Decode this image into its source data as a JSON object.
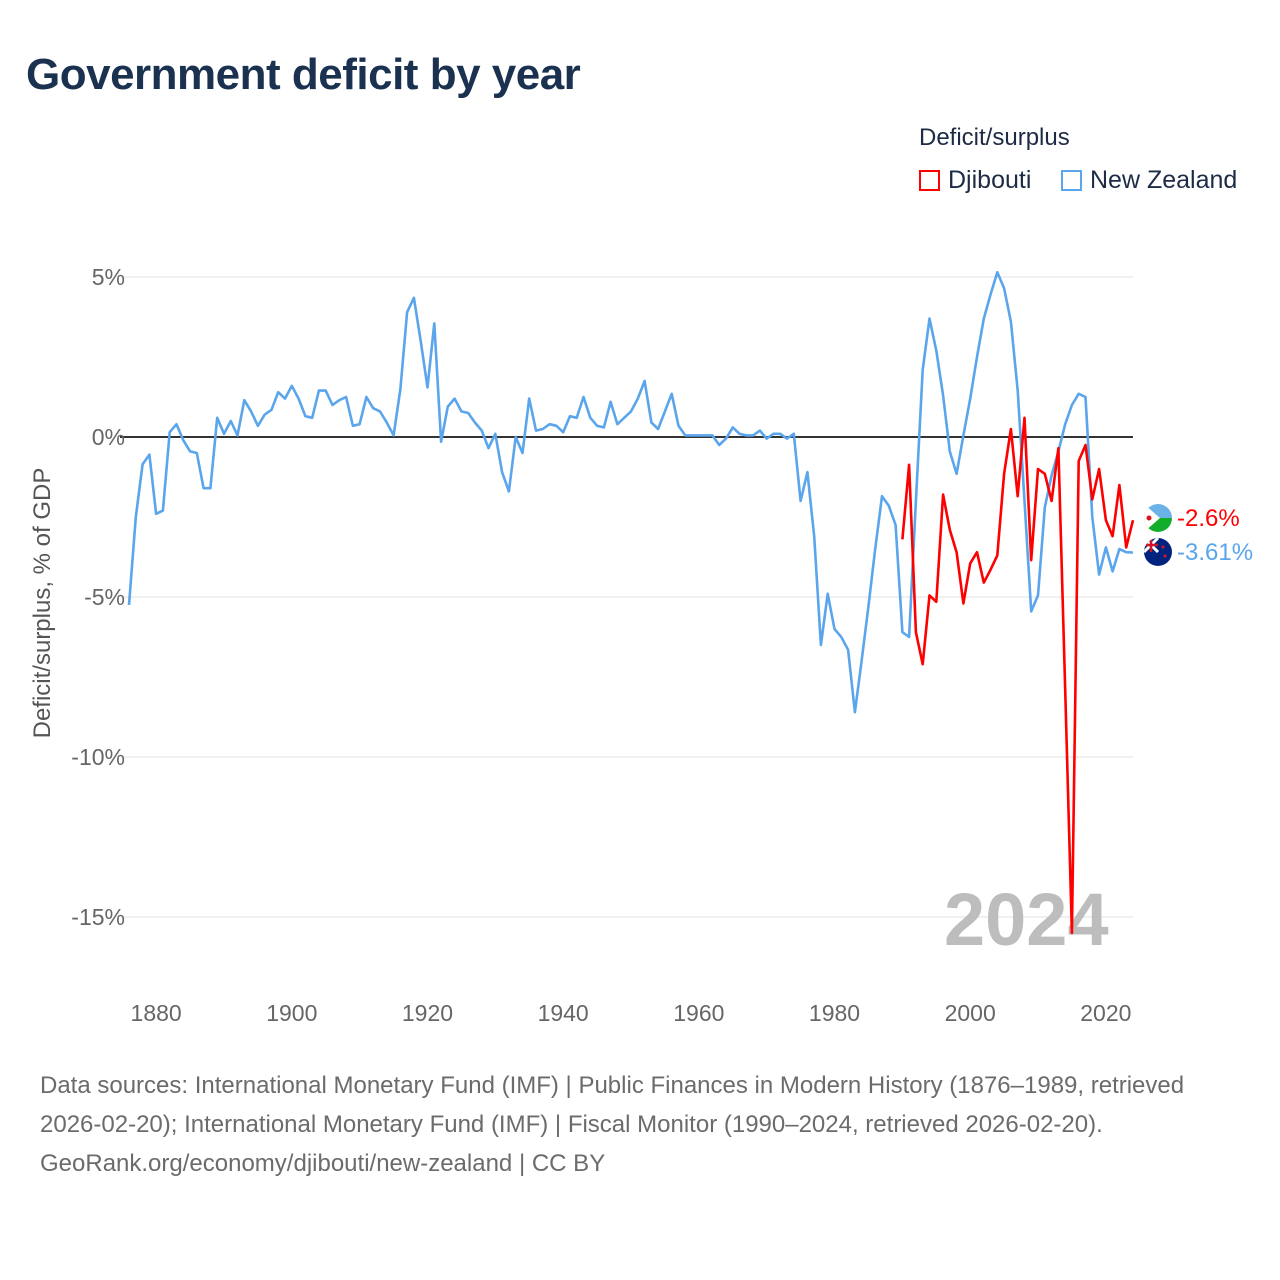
{
  "title": "Government deficit by year",
  "legend": {
    "title": "Deficit/surplus",
    "items": [
      {
        "label": "Djibouti",
        "color": "#ff0000"
      },
      {
        "label": "New Zealand",
        "color": "#5aa5eb"
      }
    ]
  },
  "year_overlay": "2024",
  "end_labels": {
    "djibouti": "-2.6%",
    "new_zealand": "-3.61%"
  },
  "footer": {
    "sources": "Data sources: International Monetary Fund (IMF) | Public Finances in Modern History (1876–1989, retrieved 2026-02-20); International Monetary Fund (IMF) | Fiscal Monitor (1990–2024, retrieved 2026-02-20).",
    "credit": "GeoRank.org/economy/djibouti/new-zealand | CC BY"
  },
  "chart_data": {
    "type": "line",
    "title": "Government deficit by year",
    "xlabel": "",
    "ylabel": "Deficit/surplus, % of GDP",
    "xlim": [
      1876,
      2024
    ],
    "ylim": [
      -17,
      6
    ],
    "yticks": [
      5,
      0,
      -5,
      -10,
      -15
    ],
    "ytick_labels": [
      "5%",
      "0%",
      "-5%",
      "-10%",
      "-15%"
    ],
    "xticks": [
      1880,
      1900,
      1920,
      1940,
      1960,
      1980,
      2000,
      2020
    ],
    "xtick_labels": [
      "1880",
      "1900",
      "1920",
      "1940",
      "1960",
      "1980",
      "2000",
      "2020"
    ],
    "grid": true,
    "legend_position": "top-right",
    "series": [
      {
        "name": "New Zealand",
        "color": "#5aa5eb",
        "start_year": 1876,
        "values": [
          -5.25,
          -2.5,
          -0.85,
          -0.55,
          -2.4,
          -2.3,
          0.15,
          0.4,
          -0.1,
          -0.45,
          -0.5,
          -1.6,
          -1.6,
          0.6,
          0.1,
          0.5,
          0.05,
          1.15,
          0.8,
          0.35,
          0.7,
          0.85,
          1.4,
          1.2,
          1.6,
          1.2,
          0.65,
          0.6,
          1.45,
          1.45,
          1.0,
          1.15,
          1.25,
          0.35,
          0.4,
          1.25,
          0.9,
          0.8,
          0.45,
          0.05,
          1.5,
          3.9,
          4.35,
          3.0,
          1.55,
          3.55,
          -0.15,
          0.95,
          1.2,
          0.8,
          0.75,
          0.45,
          0.2,
          -0.35,
          0.1,
          -1.1,
          -1.7,
          0,
          -0.5,
          1.2,
          0.2,
          0.25,
          0.4,
          0.35,
          0.15,
          0.65,
          0.6,
          1.25,
          0.6,
          0.35,
          0.3,
          1.1,
          0.4,
          0.6,
          0.8,
          1.2,
          1.75,
          0.45,
          0.25,
          0.8,
          1.35,
          0.35,
          0.05,
          0.05,
          0.05,
          0.05,
          0.05,
          -0.25,
          -0.05,
          0.3,
          0.1,
          0.05,
          0.05,
          0.2,
          -0.05,
          0.1,
          0.1,
          -0.05,
          0.1,
          -2.0,
          -1.1,
          -3.1,
          -6.5,
          -4.9,
          -6.0,
          -6.25,
          -6.65,
          -8.6,
          -7.0,
          -5.3,
          -3.5,
          -1.85,
          -2.15,
          -2.75,
          -6.1,
          -6.25,
          -2.0,
          2.1,
          3.7,
          2.7,
          1.3,
          -0.45,
          -1.15,
          0.05,
          1.2,
          2.5,
          3.7,
          4.45,
          5.15,
          4.65,
          3.6,
          1.45,
          -2.0,
          -5.45,
          -4.95,
          -2.2,
          -1.2,
          -0.45,
          0.4,
          1.0,
          1.35,
          1.25,
          -2.5,
          -4.3,
          -3.45,
          -4.2,
          -3.5,
          -3.6,
          -3.61
        ]
      },
      {
        "name": "Djibouti",
        "color": "#ff0000",
        "start_year": 1990,
        "values": [
          -3.2,
          -0.87,
          -6.1,
          -7.1,
          -4.95,
          -5.15,
          -1.8,
          -2.9,
          -3.6,
          -5.2,
          -3.95,
          -3.6,
          -4.55,
          -4.15,
          -3.7,
          -1.15,
          0.25,
          -1.85,
          0.6,
          -3.85,
          -1.0,
          -1.15,
          -2.0,
          -0.35,
          -7.9,
          -15.5,
          -0.75,
          -0.25,
          -1.95,
          -1.0,
          -2.6,
          -3.1,
          -1.5,
          -3.45,
          -2.6
        ]
      }
    ]
  }
}
